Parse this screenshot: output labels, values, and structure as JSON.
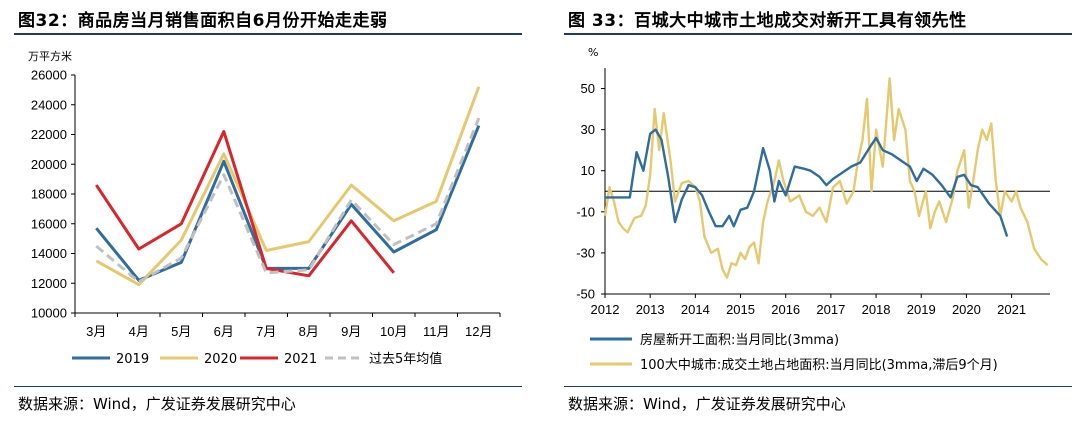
{
  "left": {
    "title": "图32：商品房当月销售面积自6月份开始走走弱",
    "source": "数据来源：Wind，广发证券发展研究中心"
  },
  "right": {
    "title": "图 33：百城大中城市土地成交对新开工具有领先性",
    "source": "数据来源：Wind，广发证券发展研究中心"
  },
  "chart_data": [
    {
      "type": "line",
      "title": "图32：商品房当月销售面积自6月份开始走走弱",
      "ylabel": "万平方米",
      "ylim": [
        10000,
        26000
      ],
      "yticks": [
        10000,
        12000,
        14000,
        16000,
        18000,
        20000,
        22000,
        24000,
        26000
      ],
      "categories": [
        "3月",
        "4月",
        "5月",
        "6月",
        "7月",
        "8月",
        "9月",
        "10月",
        "11月",
        "12月"
      ],
      "grid": false,
      "legend_position": "bottom",
      "series": [
        {
          "name": "2019",
          "color": "#2e6d9e",
          "dash": false,
          "values": [
            15700,
            12200,
            13400,
            20200,
            13000,
            13000,
            17300,
            14100,
            15600,
            22600
          ]
        },
        {
          "name": "2020",
          "color": "#e6c86e",
          "dash": false,
          "values": [
            13500,
            11900,
            14900,
            20700,
            14200,
            14800,
            18600,
            16200,
            17500,
            25200
          ]
        },
        {
          "name": "2021",
          "color": "#d9262b",
          "dash": false,
          "values": [
            18600,
            14300,
            16000,
            22200,
            13000,
            12500,
            16200,
            12700,
            null,
            null
          ]
        },
        {
          "name": "过去5年均值",
          "color": "#c0c0c0",
          "dash": true,
          "values": [
            14500,
            12100,
            13700,
            19300,
            12700,
            12900,
            17600,
            14600,
            16000,
            23100
          ]
        }
      ]
    },
    {
      "type": "line",
      "title": "图 33：百城大中城市土地成交对新开工具有领先性",
      "ylabel": "%",
      "ylim": [
        -50,
        60
      ],
      "yticks": [
        -50,
        -30,
        -10,
        10,
        30,
        50
      ],
      "x_ticks": [
        "2012",
        "2013",
        "2014",
        "2015",
        "2016",
        "2017",
        "2018",
        "2019",
        "2020",
        "2021"
      ],
      "xlim": [
        2012,
        2021.85
      ],
      "grid": false,
      "legend_position": "bottom",
      "series": [
        {
          "name": "房屋新开工面积:当月同比(3mma)",
          "color": "#2e6d9e",
          "x": [
            2012.0,
            2012.25,
            2012.55,
            2012.7,
            2012.85,
            2013.0,
            2013.12,
            2013.25,
            2013.4,
            2013.55,
            2013.7,
            2013.85,
            2014.0,
            2014.15,
            2014.3,
            2014.45,
            2014.6,
            2014.75,
            2014.85,
            2015.0,
            2015.15,
            2015.3,
            2015.5,
            2015.65,
            2015.75,
            2015.85,
            2016.0,
            2016.2,
            2016.4,
            2016.55,
            2016.75,
            2016.9,
            2017.05,
            2017.25,
            2017.45,
            2017.65,
            2017.85,
            2018.0,
            2018.15,
            2018.35,
            2018.55,
            2018.75,
            2018.9,
            2019.05,
            2019.25,
            2019.45,
            2019.65,
            2019.8,
            2019.95,
            2020.1,
            2020.25,
            2020.5,
            2020.75,
            2020.9
          ],
          "y": [
            -3,
            -3,
            -3,
            19,
            10,
            28,
            30,
            25,
            7,
            -15,
            -4,
            3,
            2,
            -2,
            -10,
            -17,
            -17,
            -12,
            -17,
            -9,
            -8,
            0,
            21,
            10,
            -5,
            5,
            -2,
            12,
            11,
            10,
            7,
            3,
            6,
            9,
            12,
            14,
            21,
            26,
            20,
            18,
            15,
            12,
            5,
            11,
            8,
            3,
            -3,
            7,
            8,
            3,
            2,
            -6,
            -12,
            -22
          ]
        },
        {
          "name": "100大中城市:成交土地占地面积:当月同比(3mma,滞后9个月)",
          "color": "#e6c86e",
          "x": [
            2012.0,
            2012.1,
            2012.2,
            2012.3,
            2012.4,
            2012.5,
            2012.65,
            2012.8,
            2012.9,
            2013.0,
            2013.1,
            2013.2,
            2013.3,
            2013.45,
            2013.55,
            2013.7,
            2013.85,
            2014.0,
            2014.1,
            2014.2,
            2014.35,
            2014.5,
            2014.6,
            2014.7,
            2014.8,
            2014.9,
            2015.0,
            2015.1,
            2015.2,
            2015.3,
            2015.4,
            2015.5,
            2015.6,
            2015.75,
            2015.85,
            2015.95,
            2016.1,
            2016.3,
            2016.45,
            2016.6,
            2016.75,
            2016.9,
            2017.05,
            2017.2,
            2017.35,
            2017.5,
            2017.6,
            2017.7,
            2017.8,
            2017.9,
            2018.0,
            2018.15,
            2018.3,
            2018.4,
            2018.5,
            2018.65,
            2018.75,
            2018.85,
            2018.95,
            2019.1,
            2019.2,
            2019.3,
            2019.4,
            2019.55,
            2019.7,
            2019.8,
            2019.95,
            2020.05,
            2020.15,
            2020.25,
            2020.35,
            2020.45,
            2020.55,
            2020.65,
            2020.75,
            2020.85,
            2021.0,
            2021.1,
            2021.2,
            2021.35,
            2021.5,
            2021.65,
            2021.8
          ],
          "y": [
            -12,
            2,
            -5,
            -15,
            -18,
            -20,
            -13,
            -12,
            -7,
            8,
            40,
            20,
            38,
            15,
            -5,
            4,
            5,
            2,
            -5,
            -22,
            -30,
            -28,
            -38,
            -42,
            -35,
            -36,
            -30,
            -33,
            -27,
            -25,
            -35,
            -15,
            -5,
            5,
            15,
            5,
            -5,
            -2,
            -10,
            -12,
            -8,
            -15,
            2,
            5,
            -6,
            0,
            15,
            25,
            45,
            0,
            30,
            12,
            55,
            25,
            40,
            30,
            5,
            0,
            -12,
            0,
            -18,
            -10,
            -5,
            -15,
            -3,
            10,
            20,
            -8,
            5,
            20,
            30,
            25,
            33,
            5,
            -12,
            0,
            -5,
            0,
            -8,
            -15,
            -28,
            -33,
            -36
          ]
        }
      ]
    }
  ]
}
